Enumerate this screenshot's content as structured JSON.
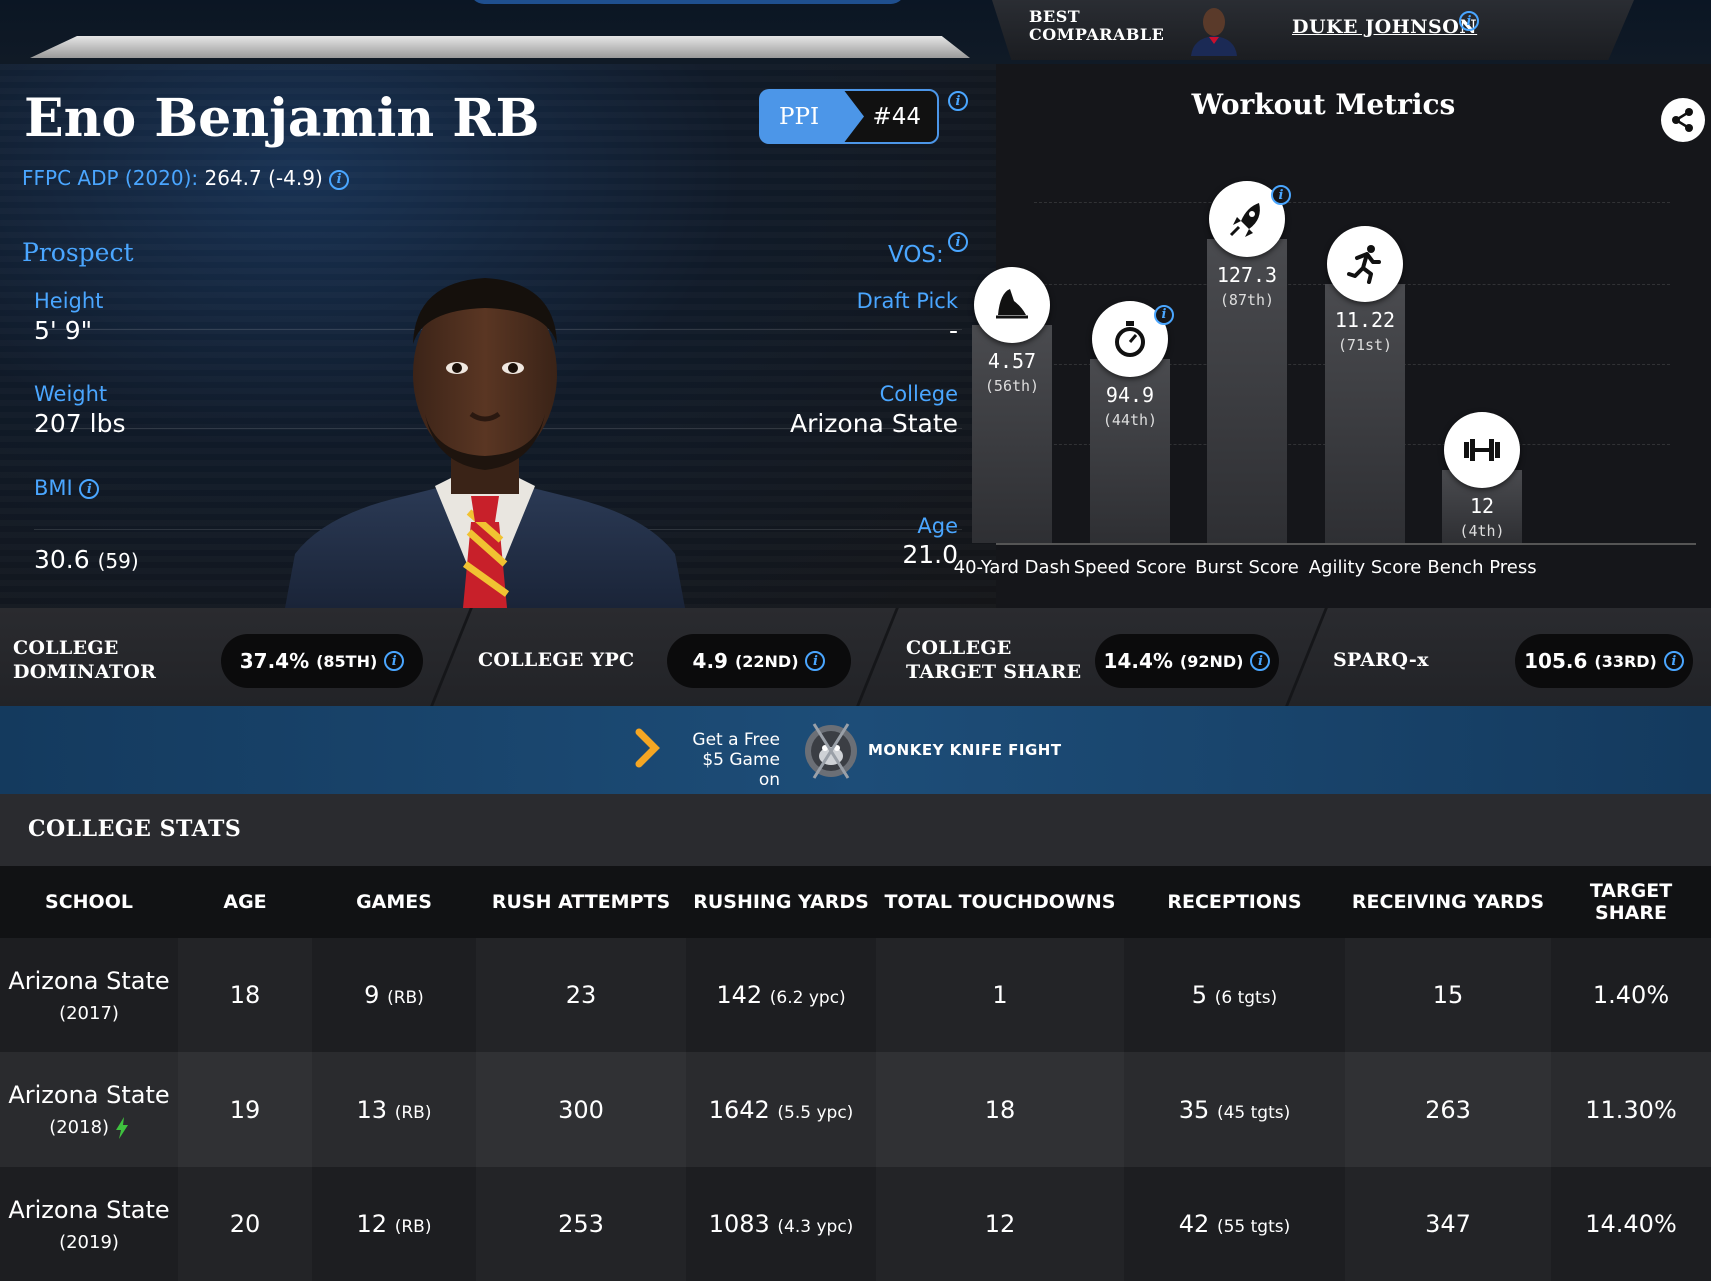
{
  "header": {
    "comparable_label_1": "BEST",
    "comparable_label_2": "COMPARABLE",
    "comparable_name": "DUKE JOHNSON"
  },
  "player": {
    "name": "Eno Benjamin RB",
    "adp_label": "FFPC ADP (2020):",
    "adp_value": "264.7 (-4.9)",
    "ppi_label": "PPI",
    "ppi_rank": "#44",
    "section_label": "Prospect",
    "vos_label": "VOS:",
    "height_label": "Height",
    "height_value": "5' 9\"",
    "weight_label": "Weight",
    "weight_value": "207 lbs",
    "bmi_label": "BMI",
    "bmi_value": "30.6",
    "bmi_rank": "(59)",
    "draft_label": "Draft Pick",
    "draft_value": "-",
    "college_label": "College",
    "college_value": "Arizona State",
    "age_label": "Age",
    "age_value": "21.0"
  },
  "workout": {
    "title": "Workout Metrics",
    "metrics": [
      {
        "label": "40-Yard Dash",
        "value": "4.57",
        "percentile": "(56th)",
        "pct": 56,
        "icon": "shoe-icon"
      },
      {
        "label": "Speed Score",
        "value": "94.9",
        "percentile": "(44th)",
        "pct": 44,
        "icon": "stopwatch-icon"
      },
      {
        "label": "Burst Score",
        "value": "127.3",
        "percentile": "(87th)",
        "pct": 87,
        "icon": "rocket-icon"
      },
      {
        "label": "Agility Score",
        "value": "11.22",
        "percentile": "(71st)",
        "pct": 71,
        "icon": "runner-icon"
      },
      {
        "label": "Bench Press",
        "value": "12",
        "percentile": "(4th)",
        "pct": 4,
        "icon": "dumbbell-icon"
      }
    ]
  },
  "metrics_bar": [
    {
      "label_1": "COLLEGE",
      "label_2": "DOMINATOR",
      "value": "37.4%",
      "rank": "(85TH)"
    },
    {
      "label_1": "COLLEGE YPC",
      "label_2": "",
      "value": "4.9",
      "rank": "(22ND)"
    },
    {
      "label_1": "COLLEGE",
      "label_2": "TARGET SHARE",
      "value": "14.4%",
      "rank": "(92ND)"
    },
    {
      "label_1": "SPARQ-x",
      "label_2": "",
      "value": "105.6",
      "rank": "(33RD)"
    }
  ],
  "ad": {
    "line1": "Get a Free",
    "line2": "$5 Game on",
    "brand": "MONKEY KNIFE FIGHT"
  },
  "college_stats": {
    "title": "COLLEGE STATS",
    "columns": [
      "SCHOOL",
      "AGE",
      "GAMES",
      "RUSH ATTEMPTS",
      "RUSHING YARDS",
      "TOTAL TOUCHDOWNS",
      "RECEPTIONS",
      "RECEIVING YARDS",
      "TARGET SHARE"
    ],
    "rows": [
      {
        "school": "Arizona State",
        "year": "(2017)",
        "age": "18",
        "games": "9",
        "games_pos": "(RB)",
        "rush_att": "23",
        "rush_yds": "142",
        "ypc": "(6.2 ypc)",
        "td": "1",
        "rec": "5",
        "tgts": "(6 tgts)",
        "rec_yds": "15",
        "tgt_share": "1.40%"
      },
      {
        "school": "Arizona State",
        "year": "(2018)",
        "age": "19",
        "games": "13",
        "games_pos": "(RB)",
        "rush_att": "300",
        "rush_yds": "1642",
        "ypc": "(5.5 ypc)",
        "td": "18",
        "rec": "35",
        "tgts": "(45 tgts)",
        "rec_yds": "263",
        "tgt_share": "11.30%"
      },
      {
        "school": "Arizona State",
        "year": "(2019)",
        "age": "20",
        "games": "12",
        "games_pos": "(RB)",
        "rush_att": "253",
        "rush_yds": "1083",
        "ypc": "(4.3 ypc)",
        "td": "12",
        "rec": "42",
        "tgts": "(55 tgts)",
        "rec_yds": "347",
        "tgt_share": "14.40%"
      }
    ]
  },
  "colors": {
    "accent_blue": "#4aa6ff",
    "ppi_blue": "#4c96e8",
    "breakout_green": "#3fc23f",
    "ad_arrow_orange": "#f5a623"
  }
}
